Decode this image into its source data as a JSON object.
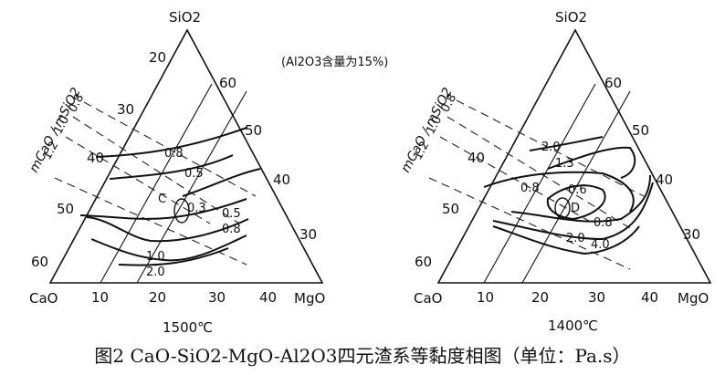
{
  "note": "(Al2O3含量为15%)",
  "caption": "图2 CaO-SiO2-MgO-Al2O3四元渣系等黏度相图（单位：Pa.s）",
  "vertices": {
    "top": "SiO2",
    "left": "CaO",
    "right": "MgO"
  },
  "left_ticks": [
    "20",
    "30",
    "40",
    "50",
    "60"
  ],
  "right_ticks": [
    "60",
    "50",
    "40",
    "30"
  ],
  "bottom_ticks": [
    "10",
    "20",
    "30",
    "40"
  ],
  "ratio_axis": {
    "label": "mCaO / mSiO2",
    "values": [
      "1.2",
      "1.0",
      "0.8"
    ]
  },
  "diagrams": [
    {
      "temperature": "1500℃",
      "point": "C",
      "contours": [
        "0.8",
        "0.5",
        "0.3",
        "0.5",
        "0.8",
        "1.0",
        "2.0"
      ]
    },
    {
      "temperature": "1400℃",
      "point": "D",
      "contours": [
        "2.0",
        "1.3",
        "0.8",
        "0.6",
        "0.8",
        "2.0",
        "4.0"
      ]
    }
  ]
}
